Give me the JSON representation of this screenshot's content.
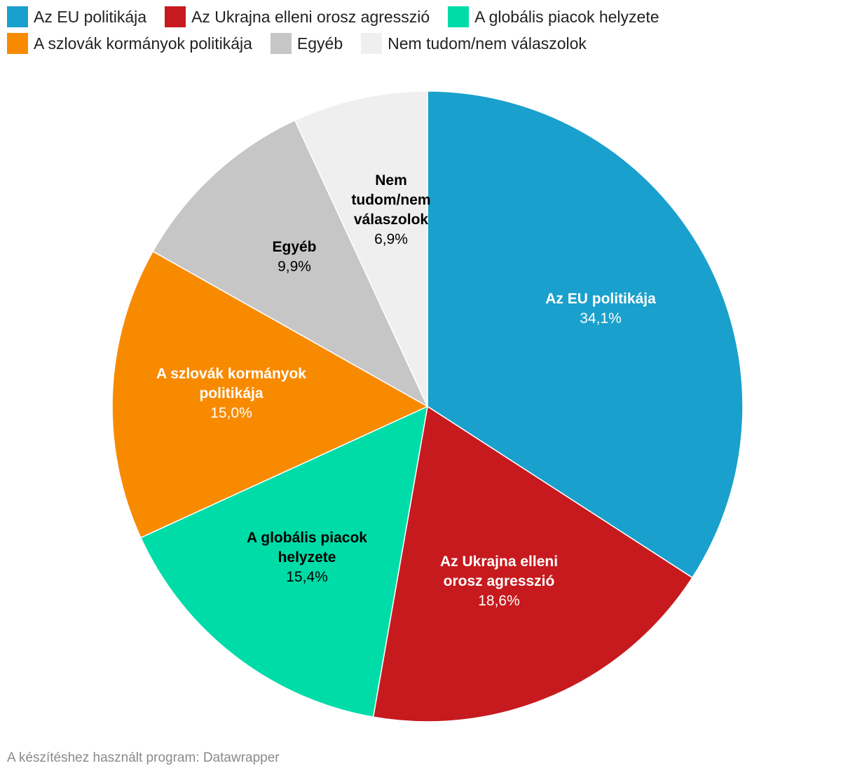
{
  "chart_data": {
    "type": "pie",
    "series": [
      {
        "name": "Az EU politikája",
        "label_lines": [
          "Az EU politikája"
        ],
        "value": 34.1,
        "value_label": "34,1%",
        "color": "#1aa0cc",
        "text_color": "#ffffff"
      },
      {
        "name": "Az Ukrajna elleni orosz agresszió",
        "label_lines": [
          "Az Ukrajna elleni",
          "orosz agresszió"
        ],
        "value": 18.6,
        "value_label": "18,6%",
        "color": "#c71a1e",
        "text_color": "#ffffff"
      },
      {
        "name": "A globális piacok helyzete",
        "label_lines": [
          "A globális piacok",
          "helyzete"
        ],
        "value": 15.4,
        "value_label": "15,4%",
        "color": "#00dca8",
        "text_color": "#000000"
      },
      {
        "name": "A szlovák kormányok politikája",
        "label_lines": [
          "A szlovák kormányok",
          "politikája"
        ],
        "value": 15.0,
        "value_label": "15,0%",
        "color": "#f88a00",
        "text_color": "#ffffff"
      },
      {
        "name": "Egyéb",
        "label_lines": [
          "Egyéb"
        ],
        "value": 9.9,
        "value_label": "9,9%",
        "color": "#c6c6c6",
        "text_color": "#000000"
      },
      {
        "name": "Nem tudom/nem válaszolok",
        "label_lines": [
          "Nem",
          "tudom/nem",
          "válaszolok"
        ],
        "value": 6.9,
        "value_label": "6,9%",
        "color": "#efefef",
        "text_color": "#000000"
      }
    ],
    "start": "12 o'clock",
    "direction": "clockwise",
    "legend_position": "top-left"
  },
  "footer": {
    "credit": "A készítéshez használt program: Datawrapper"
  }
}
